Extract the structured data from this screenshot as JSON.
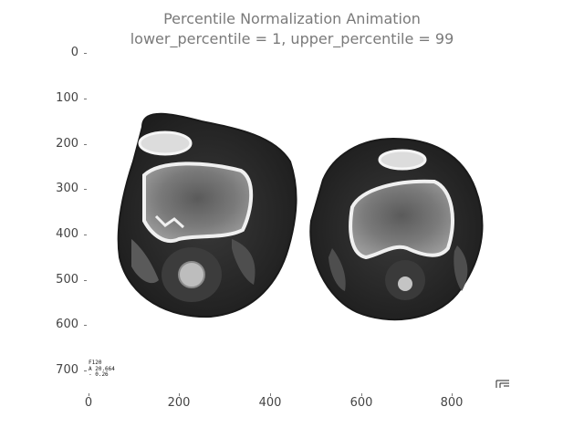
{
  "figure": {
    "title_line_1": "Percentile Normalization Animation",
    "title_line_2": "lower_percentile = 1, upper_percentile = 99"
  },
  "axes": {
    "y_ticks": [
      "0",
      "100",
      "200",
      "300",
      "400",
      "500",
      "600",
      "700"
    ],
    "x_ticks": [
      "0",
      "200",
      "400",
      "600",
      "800"
    ],
    "ylim": [
      0,
      750
    ],
    "xlim": [
      0,
      900
    ]
  },
  "image": {
    "description_icon": "ct-knee-axial-scan",
    "colormap": "grayscale"
  },
  "overlay_text": [
    "F120",
    "A 20.664",
    "- 0.26"
  ],
  "colors": {
    "title": "#7a7a7a",
    "tick_label": "#444444",
    "background": "#ffffff"
  }
}
